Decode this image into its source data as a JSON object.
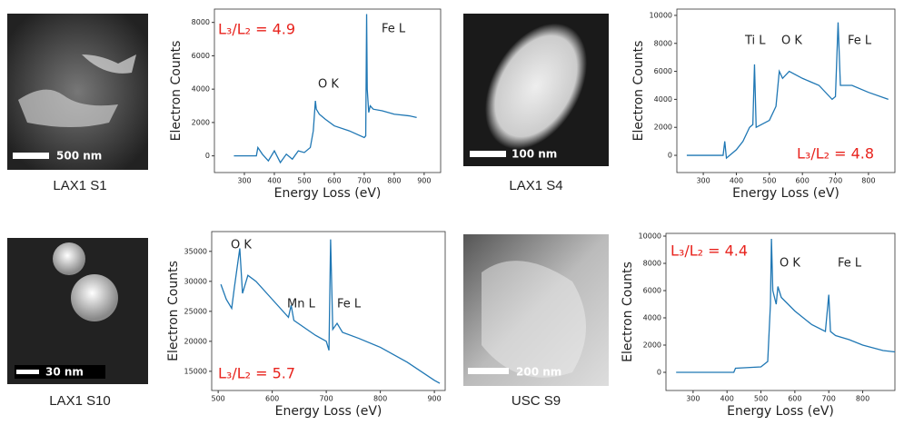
{
  "images": [
    {
      "caption": "LAX1 S1",
      "scale_bar": "500 nm"
    },
    {
      "caption": "LAX1 S4",
      "scale_bar": "100 nm"
    },
    {
      "caption": "LAX1 S10",
      "scale_bar": "30 nm"
    },
    {
      "caption": "USC S9",
      "scale_bar": "200 nm"
    }
  ],
  "chart_data": [
    {
      "type": "line",
      "x_label": "Energy Loss (eV)",
      "y_label": "Electron Counts",
      "color": "#1f77b4",
      "x": [
        265,
        300,
        340,
        345,
        360,
        380,
        400,
        420,
        440,
        460,
        480,
        500,
        520,
        530,
        537,
        540,
        550,
        570,
        600,
        650,
        700,
        705,
        708,
        710,
        715,
        720,
        730,
        760,
        800,
        850,
        875
      ],
      "values": [
        0,
        0,
        0,
        500,
        100,
        -300,
        300,
        -400,
        100,
        -200,
        300,
        200,
        500,
        1500,
        3300,
        2800,
        2500,
        2200,
        1800,
        1500,
        1100,
        1200,
        8500,
        4000,
        2600,
        3000,
        2800,
        2700,
        2500,
        2400,
        2300
      ],
      "xlim": [
        200,
        955
      ],
      "ylim": [
        -1000,
        8800
      ],
      "xticks": [
        300,
        400,
        500,
        600,
        700,
        800,
        900
      ],
      "yticks": [
        0,
        2000,
        4000,
        6000,
        8000
      ],
      "annotations": [
        "L₃/L₂ = 4.9",
        "O K",
        "Fe L"
      ]
    },
    {
      "type": "line",
      "x_label": "Energy Loss (eV)",
      "y_label": "Electron Counts",
      "color": "#1f77b4",
      "x": [
        250,
        360,
        365,
        370,
        400,
        420,
        440,
        450,
        455,
        460,
        500,
        520,
        530,
        540,
        560,
        600,
        650,
        690,
        700,
        708,
        715,
        750,
        800,
        860
      ],
      "values": [
        0,
        0,
        1000,
        -200,
        400,
        1000,
        2000,
        2200,
        6500,
        2000,
        2500,
        3500,
        6000,
        5500,
        6000,
        5500,
        5000,
        4000,
        4200,
        9500,
        5000,
        5000,
        4500,
        4000
      ],
      "xlim": [
        220,
        880
      ],
      "ylim": [
        -1230,
        10450
      ],
      "xticks": [
        300,
        400,
        500,
        600,
        700,
        800
      ],
      "yticks": [
        0,
        2000,
        4000,
        6000,
        8000,
        10000
      ],
      "annotations": [
        "Ti L",
        "O K",
        "Fe L",
        "L₃/L₂ = 4.8"
      ]
    },
    {
      "type": "line",
      "x_label": "Energy Loss (eV)",
      "y_label": "Electron Counts",
      "color": "#1f77b4",
      "x": [
        505,
        515,
        525,
        530,
        540,
        545,
        555,
        570,
        600,
        630,
        635,
        640,
        680,
        700,
        705,
        708,
        712,
        720,
        730,
        760,
        800,
        850,
        900,
        910
      ],
      "values": [
        29500,
        27000,
        25500,
        29000,
        35500,
        28000,
        31000,
        30000,
        27000,
        24000,
        26000,
        23500,
        21000,
        20000,
        18500,
        37000,
        22000,
        23000,
        21500,
        20500,
        19000,
        16500,
        13500,
        13000
      ],
      "xlim": [
        488,
        920
      ],
      "ylim": [
        11800,
        38300
      ],
      "xticks": [
        500,
        600,
        700,
        800,
        900
      ],
      "yticks": [
        15000,
        20000,
        25000,
        30000,
        35000
      ],
      "annotations": [
        "O K",
        "Mn L",
        "Fe L",
        "L₃/L₂ = 5.7"
      ]
    },
    {
      "type": "line",
      "x_label": "Energy Loss (eV)",
      "y_label": "Electron Counts",
      "color": "#1f77b4",
      "x": [
        250,
        420,
        425,
        500,
        520,
        528,
        531,
        535,
        545,
        550,
        560,
        600,
        650,
        690,
        700,
        705,
        720,
        760,
        800,
        860,
        895
      ],
      "values": [
        0,
        0,
        300,
        400,
        800,
        5000,
        9800,
        6000,
        5000,
        6300,
        5500,
        4500,
        3500,
        3000,
        5700,
        3000,
        2700,
        2400,
        2000,
        1600,
        1500
      ],
      "xlim": [
        220,
        895
      ],
      "ylim": [
        -1333,
        10200
      ],
      "xticks": [
        300,
        400,
        500,
        600,
        700,
        800
      ],
      "yticks": [
        0,
        2000,
        4000,
        6000,
        8000,
        10000
      ],
      "annotations": [
        "L₃/L₂ = 4.4",
        "O K",
        "Fe L"
      ]
    }
  ]
}
